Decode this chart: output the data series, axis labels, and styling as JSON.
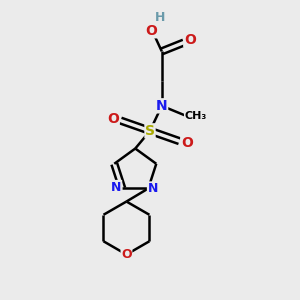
{
  "bg_color": "#ebebeb",
  "bond_color": "#000000",
  "bond_width": 1.8,
  "atom_colors": {
    "C": "#000000",
    "H": "#6a9aaa",
    "N": "#1a1aee",
    "O": "#cc1a1a",
    "S": "#aaaa00"
  },
  "font_size": 10,
  "fig_size": [
    3.0,
    3.0
  ],
  "dpi": 100
}
